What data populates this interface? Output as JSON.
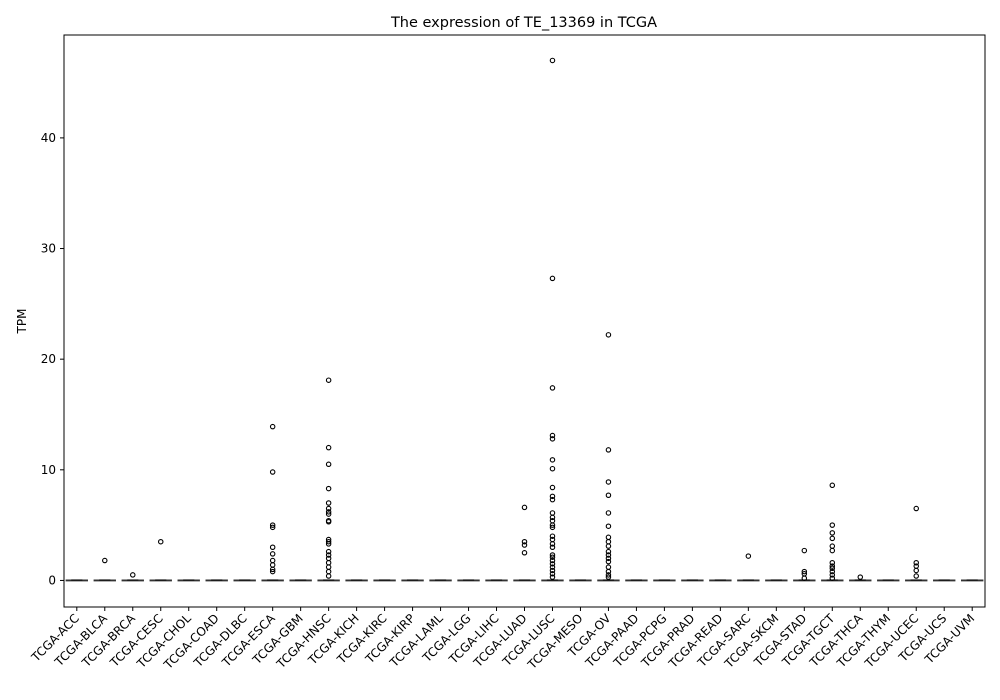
{
  "chart_data": {
    "type": "box",
    "title": "The expression of TE_13369 in TCGA",
    "xlabel": "",
    "ylabel": "TPM",
    "ylim": [
      -2.4,
      49.3
    ],
    "yticks": [
      0,
      10,
      20,
      30,
      40
    ],
    "grid": false,
    "categories": [
      "TCGA-ACC",
      "TCGA-BLCA",
      "TCGA-BRCA",
      "TCGA-CESC",
      "TCGA-CHOL",
      "TCGA-COAD",
      "TCGA-DLBC",
      "TCGA-ESCA",
      "TCGA-GBM",
      "TCGA-HNSC",
      "TCGA-KICH",
      "TCGA-KIRC",
      "TCGA-KIRP",
      "TCGA-LAML",
      "TCGA-LGG",
      "TCGA-LIHC",
      "TCGA-LUAD",
      "TCGA-LUSC",
      "TCGA-MESO",
      "TCGA-OV",
      "TCGA-PAAD",
      "TCGA-PCPG",
      "TCGA-PRAD",
      "TCGA-READ",
      "TCGA-SARC",
      "TCGA-SKCM",
      "TCGA-STAD",
      "TCGA-TGCT",
      "TCGA-THCA",
      "TCGA-THYM",
      "TCGA-UCEC",
      "TCGA-UCS",
      "TCGA-UVM"
    ],
    "median": 0,
    "outliers": [
      [],
      [
        1.8
      ],
      [
        0.5
      ],
      [
        3.5
      ],
      [],
      [],
      [],
      [
        13.9,
        9.8,
        5.0,
        4.8,
        3.0,
        2.4,
        1.8,
        1.4,
        1.0,
        0.8
      ],
      [],
      [
        18.1,
        12.0,
        10.5,
        8.3,
        7.0,
        6.5,
        6.2,
        6.0,
        5.4,
        5.3,
        3.7,
        3.5,
        3.3,
        2.6,
        2.3,
        2.0,
        1.6,
        1.2,
        0.8,
        0.4
      ],
      [],
      [],
      [],
      [],
      [],
      [],
      [
        6.6,
        3.5,
        3.2,
        2.5
      ],
      [
        47.0,
        27.3,
        17.4,
        13.1,
        12.8,
        10.9,
        10.1,
        8.4,
        7.6,
        7.3,
        6.1,
        5.7,
        5.4,
        5.0,
        4.8,
        4.0,
        3.7,
        3.3,
        3.0,
        2.3,
        2.1,
        1.8,
        1.5,
        1.2,
        0.9,
        0.6,
        0.3
      ],
      [],
      [
        22.2,
        11.8,
        8.9,
        7.7,
        6.1,
        4.9,
        3.9,
        3.5,
        3.1,
        2.6,
        2.3,
        2.0,
        1.7,
        1.2,
        0.8,
        0.5,
        0.3
      ],
      [],
      [],
      [],
      [],
      [
        2.2
      ],
      [],
      [
        2.7,
        0.8,
        0.6,
        0.2
      ],
      [
        8.6,
        5.0,
        4.3,
        3.8,
        3.1,
        2.7,
        1.6,
        1.3,
        1.1,
        0.8,
        0.5,
        0.2
      ],
      [
        0.3
      ],
      [],
      [
        6.5,
        1.6,
        1.3,
        0.9,
        0.4
      ],
      [],
      []
    ]
  }
}
